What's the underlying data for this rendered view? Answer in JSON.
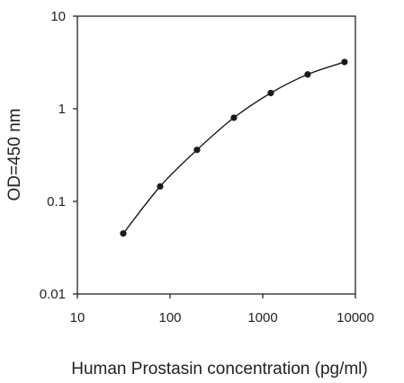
{
  "chart_data": {
    "type": "line",
    "xlabel": "Human Prostasin concentration (pg/ml)",
    "ylabel": "OD=450 nm",
    "x_scale": "log",
    "y_scale": "log",
    "xlim": [
      10,
      10000
    ],
    "ylim": [
      0.01,
      10
    ],
    "x_ticks": [
      "10",
      "100",
      "1000",
      "10000"
    ],
    "y_ticks": [
      "10",
      "1",
      "0.1",
      "0.01"
    ],
    "grid": false,
    "series": [
      {
        "x": [
          31.25,
          78.125,
          195.3,
          488.3,
          1220.7,
          3051.8,
          7629.4
        ],
        "y": [
          0.045,
          0.145,
          0.36,
          0.8,
          1.48,
          2.35,
          3.2
        ],
        "color": "#1a1a1a"
      }
    ]
  }
}
